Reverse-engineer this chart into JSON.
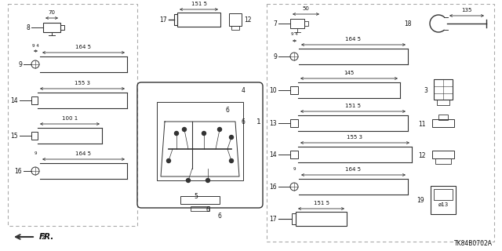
{
  "bg_color": "#ffffff",
  "line_color": "#333333",
  "text_color": "#111111",
  "diagram_code": "TK84B0702A",
  "fig_w": 6.4,
  "fig_h": 3.2
}
